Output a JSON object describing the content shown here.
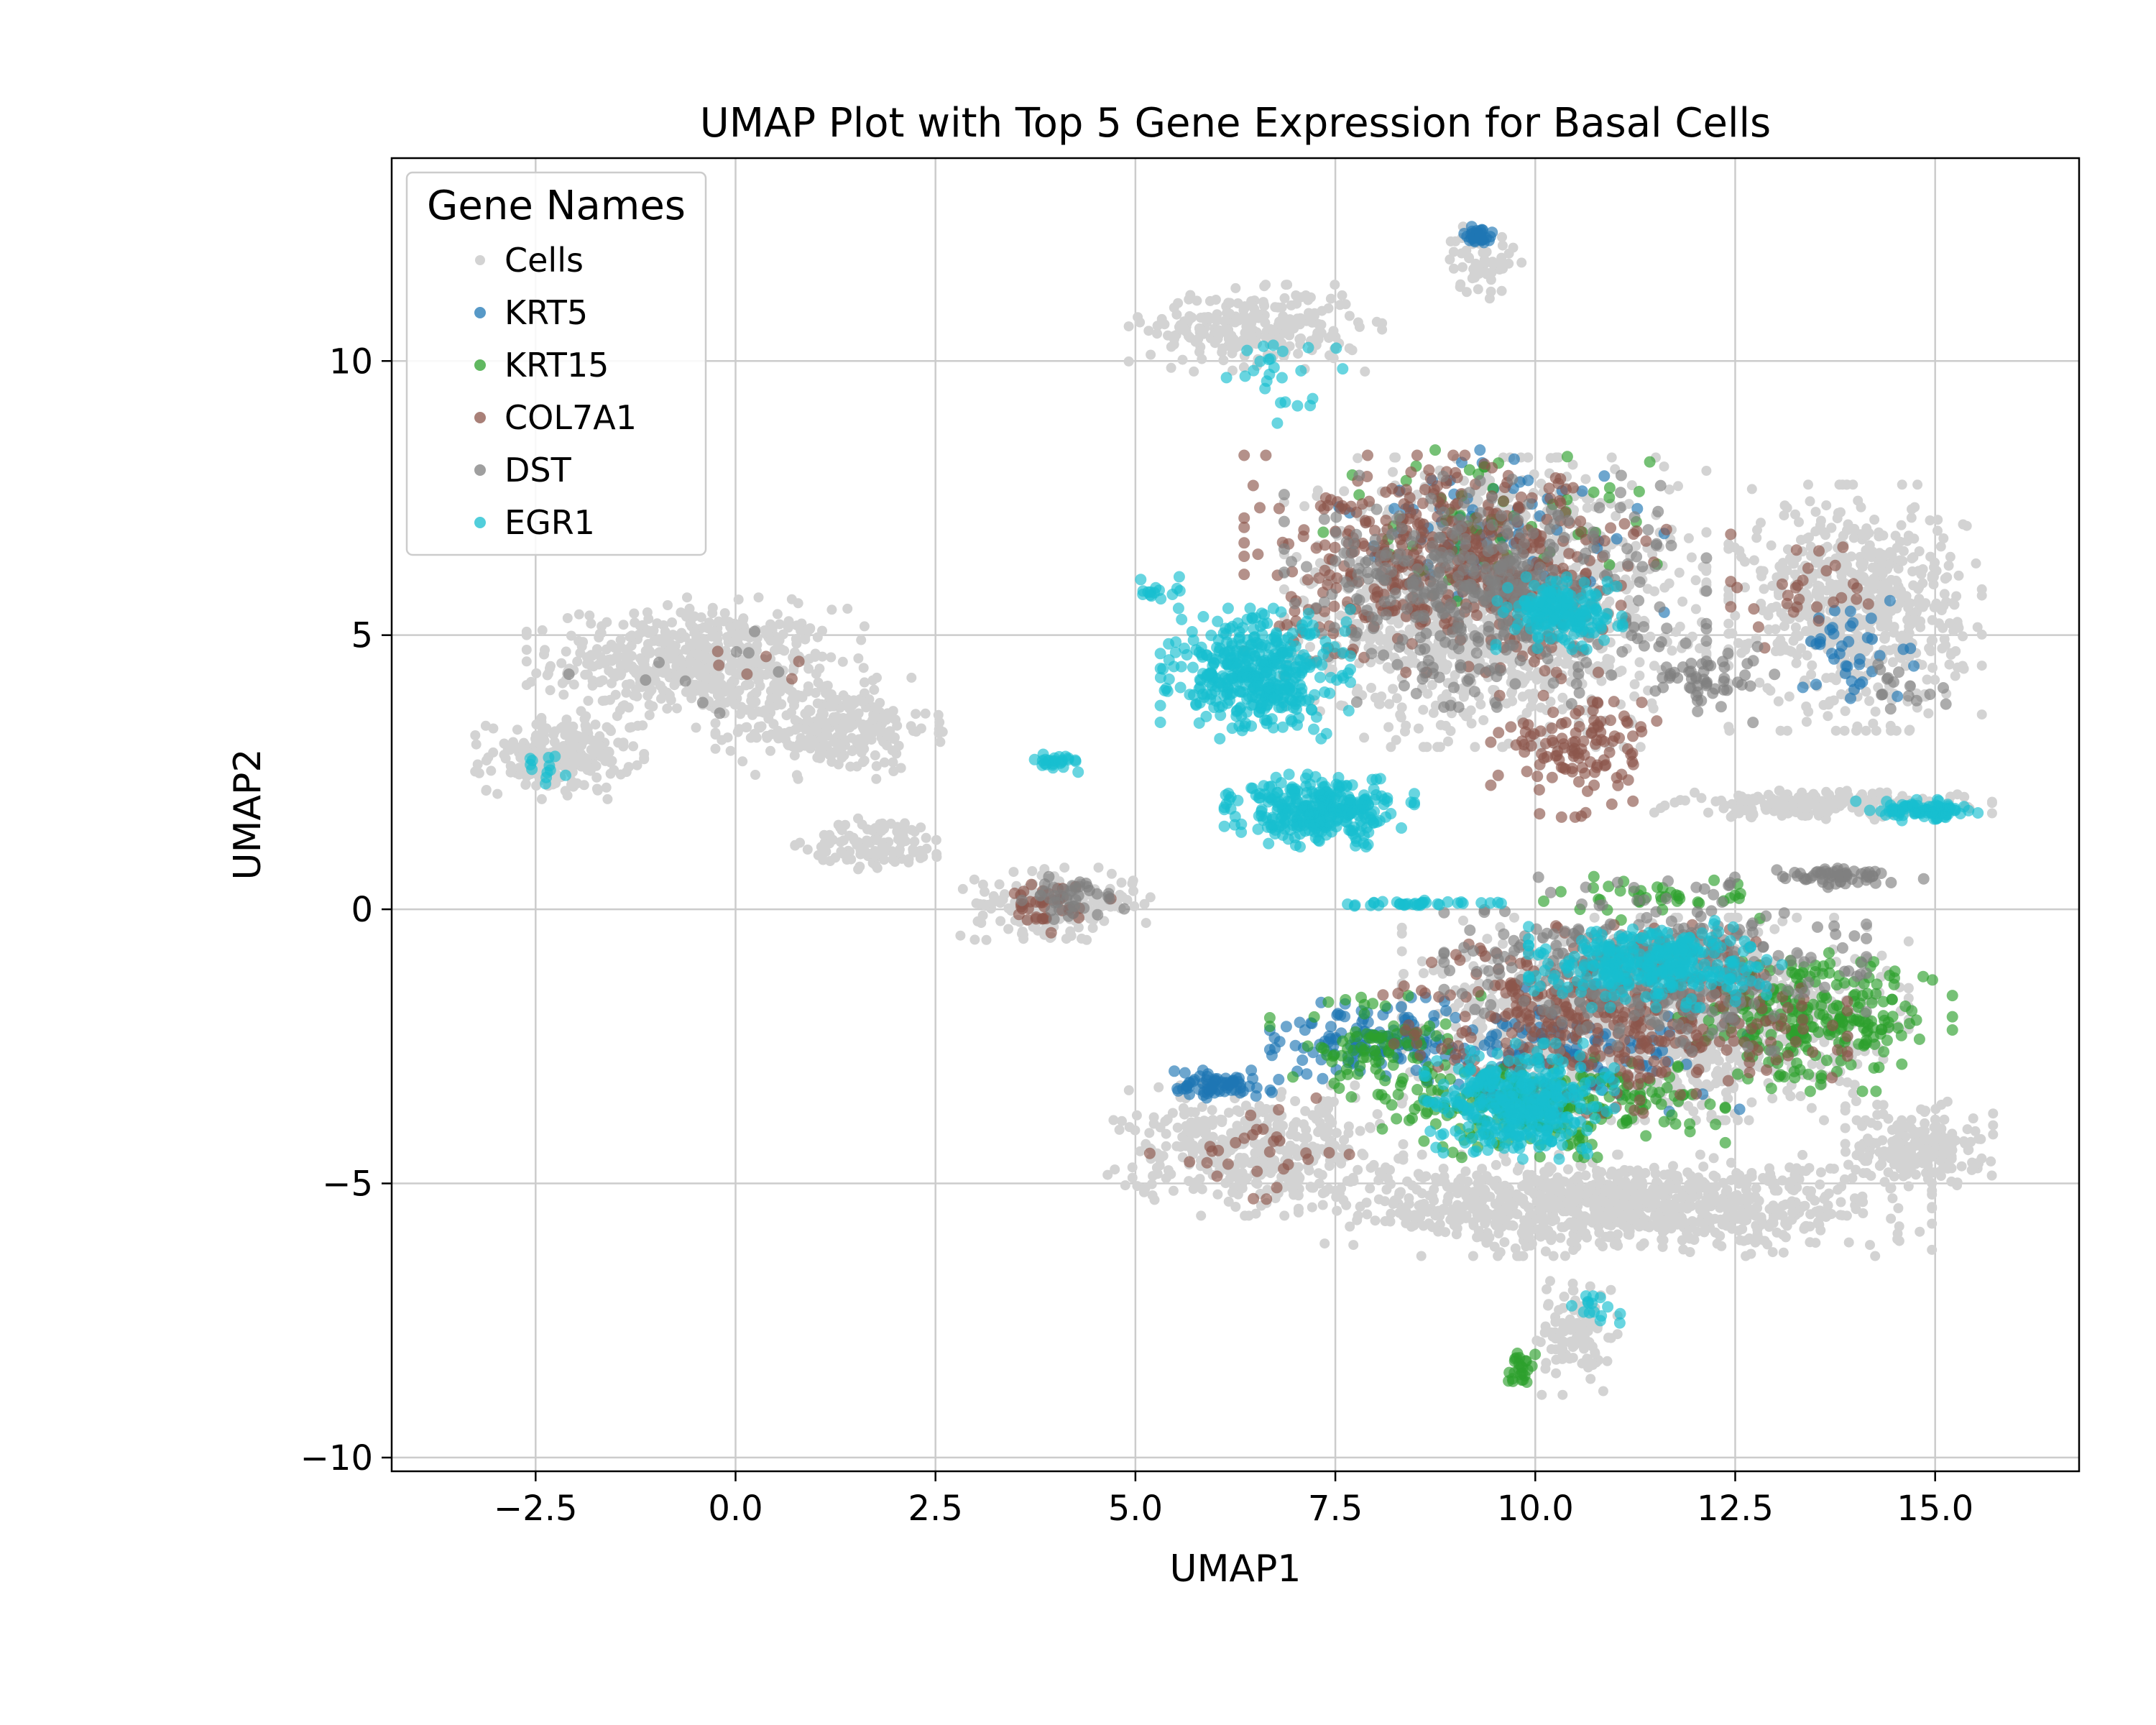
{
  "chart_data": {
    "type": "scatter",
    "title": "UMAP Plot with Top 5 Gene Expression for Basal Cells",
    "xlabel": "UMAP1",
    "ylabel": "UMAP2",
    "xlim": [
      -4.3,
      16.8
    ],
    "ylim": [
      -10.25,
      13.7
    ],
    "grid": true,
    "legend": {
      "title": "Gene Names",
      "placement": "top-left",
      "entries": [
        "Cells",
        "KRT5",
        "KRT15",
        "COL7A1",
        "DST",
        "EGR1"
      ]
    },
    "x_ticks": [
      {
        "value": -2.5,
        "label": "−2.5"
      },
      {
        "value": 0.0,
        "label": "0.0"
      },
      {
        "value": 2.5,
        "label": "2.5"
      },
      {
        "value": 5.0,
        "label": "5.0"
      },
      {
        "value": 7.5,
        "label": "7.5"
      },
      {
        "value": 10.0,
        "label": "10.0"
      },
      {
        "value": 12.5,
        "label": "12.5"
      },
      {
        "value": 15.0,
        "label": "15.0"
      }
    ],
    "y_ticks": [
      {
        "value": -10,
        "label": "−10"
      },
      {
        "value": -5,
        "label": "−5"
      },
      {
        "value": 0,
        "label": "0"
      },
      {
        "value": 5,
        "label": "5"
      },
      {
        "value": 10,
        "label": "10"
      }
    ],
    "series": [
      {
        "name": "Cells",
        "color": "#d3d3d3",
        "clusters": [
          {
            "x": -0.5,
            "y": 4.5,
            "sx": 1.6,
            "sy": 0.9,
            "n": 550
          },
          {
            "x": -2.2,
            "y": 2.8,
            "sx": 0.8,
            "sy": 0.6,
            "n": 220
          },
          {
            "x": 1.2,
            "y": 3.3,
            "sx": 1.1,
            "sy": 0.7,
            "n": 280
          },
          {
            "x": 1.8,
            "y": 1.2,
            "sx": 0.8,
            "sy": 0.4,
            "n": 120
          },
          {
            "x": 4.0,
            "y": 0.1,
            "sx": 0.9,
            "sy": 0.5,
            "n": 200
          },
          {
            "x": 6.5,
            "y": 10.6,
            "sx": 1.2,
            "sy": 0.6,
            "n": 260
          },
          {
            "x": 9.3,
            "y": 11.8,
            "sx": 0.4,
            "sy": 0.5,
            "n": 50
          },
          {
            "x": 9.5,
            "y": 5.6,
            "sx": 2.0,
            "sy": 2.0,
            "n": 1400
          },
          {
            "x": 14.0,
            "y": 5.5,
            "sx": 1.2,
            "sy": 1.7,
            "n": 650
          },
          {
            "x": 13.6,
            "y": 1.9,
            "sx": 1.6,
            "sy": 0.2,
            "n": 220
          },
          {
            "x": 11.5,
            "y": -2.0,
            "sx": 2.4,
            "sy": 1.4,
            "n": 1400
          },
          {
            "x": 11.0,
            "y": -5.4,
            "sx": 3.0,
            "sy": 0.7,
            "n": 1000
          },
          {
            "x": 6.5,
            "y": -4.4,
            "sx": 1.4,
            "sy": 0.9,
            "n": 400
          },
          {
            "x": 10.5,
            "y": -7.8,
            "sx": 0.4,
            "sy": 0.8,
            "n": 110
          },
          {
            "x": 14.8,
            "y": -4.3,
            "sx": 0.7,
            "sy": 0.6,
            "n": 200
          }
        ]
      },
      {
        "name": "KRT5",
        "color": "#1f77b4",
        "clusters": [
          {
            "x": 9.3,
            "y": 12.3,
            "sx": 0.15,
            "sy": 0.15,
            "n": 30
          },
          {
            "x": 6.0,
            "y": -3.2,
            "sx": 0.6,
            "sy": 0.2,
            "n": 70
          },
          {
            "x": 8.0,
            "y": -2.4,
            "sx": 1.0,
            "sy": 0.6,
            "n": 130
          },
          {
            "x": 10.5,
            "y": -2.5,
            "sx": 1.8,
            "sy": 0.9,
            "n": 110
          },
          {
            "x": 9.5,
            "y": 7.0,
            "sx": 1.6,
            "sy": 1.2,
            "n": 70
          },
          {
            "x": 14.0,
            "y": 4.6,
            "sx": 0.9,
            "sy": 0.8,
            "n": 40
          }
        ]
      },
      {
        "name": "KRT15",
        "color": "#2ca02c",
        "clusters": [
          {
            "x": 13.5,
            "y": -2.0,
            "sx": 1.3,
            "sy": 1.0,
            "n": 260
          },
          {
            "x": 10.0,
            "y": -3.6,
            "sx": 1.8,
            "sy": 0.7,
            "n": 240
          },
          {
            "x": 8.0,
            "y": -2.5,
            "sx": 1.0,
            "sy": 0.7,
            "n": 90
          },
          {
            "x": 9.8,
            "y": -8.4,
            "sx": 0.15,
            "sy": 0.3,
            "n": 25
          },
          {
            "x": 9.5,
            "y": 7.0,
            "sx": 1.8,
            "sy": 1.2,
            "n": 60
          },
          {
            "x": 11.5,
            "y": 0.2,
            "sx": 1.2,
            "sy": 0.3,
            "n": 40
          }
        ]
      },
      {
        "name": "COL7A1",
        "color": "#8c564b",
        "clusters": [
          {
            "x": 9.0,
            "y": 6.3,
            "sx": 2.0,
            "sy": 1.5,
            "n": 480
          },
          {
            "x": 11.0,
            "y": -2.0,
            "sx": 2.2,
            "sy": 1.3,
            "n": 420
          },
          {
            "x": 10.5,
            "y": 3.0,
            "sx": 0.8,
            "sy": 1.0,
            "n": 120
          },
          {
            "x": 4.0,
            "y": 0.1,
            "sx": 0.6,
            "sy": 0.4,
            "n": 40
          },
          {
            "x": 13.5,
            "y": 5.8,
            "sx": 0.8,
            "sy": 0.8,
            "n": 30
          },
          {
            "x": 6.5,
            "y": -4.5,
            "sx": 1.0,
            "sy": 0.8,
            "n": 30
          },
          {
            "x": 0.0,
            "y": 4.6,
            "sx": 0.6,
            "sy": 0.5,
            "n": 6
          }
        ]
      },
      {
        "name": "DST",
        "color": "#7f7f7f",
        "clusters": [
          {
            "x": 9.5,
            "y": 5.8,
            "sx": 2.0,
            "sy": 1.6,
            "n": 450
          },
          {
            "x": 11.5,
            "y": -1.0,
            "sx": 2.0,
            "sy": 1.2,
            "n": 350
          },
          {
            "x": 13.8,
            "y": 0.6,
            "sx": 0.8,
            "sy": 0.15,
            "n": 60
          },
          {
            "x": 12.2,
            "y": 4.2,
            "sx": 0.6,
            "sy": 0.6,
            "n": 50
          },
          {
            "x": 4.2,
            "y": 0.2,
            "sx": 0.5,
            "sy": 0.3,
            "n": 40
          },
          {
            "x": -0.5,
            "y": 4.5,
            "sx": 1.2,
            "sy": 0.7,
            "n": 10
          },
          {
            "x": 14.5,
            "y": 4.0,
            "sx": 0.5,
            "sy": 0.5,
            "n": 15
          }
        ]
      },
      {
        "name": "EGR1",
        "color": "#17becf",
        "clusters": [
          {
            "x": 6.5,
            "y": 4.3,
            "sx": 0.9,
            "sy": 0.9,
            "n": 420
          },
          {
            "x": 7.3,
            "y": 1.8,
            "sx": 0.9,
            "sy": 0.5,
            "n": 320
          },
          {
            "x": 10.3,
            "y": 5.4,
            "sx": 0.6,
            "sy": 0.5,
            "n": 180
          },
          {
            "x": 9.8,
            "y": -3.5,
            "sx": 0.9,
            "sy": 0.8,
            "n": 380
          },
          {
            "x": 11.5,
            "y": -1.0,
            "sx": 1.2,
            "sy": 0.6,
            "n": 340
          },
          {
            "x": 14.8,
            "y": 1.8,
            "sx": 0.6,
            "sy": 0.15,
            "n": 90
          },
          {
            "x": 4.0,
            "y": 2.7,
            "sx": 0.25,
            "sy": 0.15,
            "n": 25
          },
          {
            "x": 8.5,
            "y": 0.1,
            "sx": 1.0,
            "sy": 0.05,
            "n": 35
          },
          {
            "x": 6.8,
            "y": 9.6,
            "sx": 0.6,
            "sy": 0.7,
            "n": 25
          },
          {
            "x": 10.8,
            "y": -7.3,
            "sx": 0.3,
            "sy": 0.4,
            "n": 15
          },
          {
            "x": -2.5,
            "y": 2.6,
            "sx": 0.3,
            "sy": 0.4,
            "n": 12
          },
          {
            "x": 5.2,
            "y": 5.8,
            "sx": 0.3,
            "sy": 0.2,
            "n": 15
          }
        ]
      }
    ]
  }
}
